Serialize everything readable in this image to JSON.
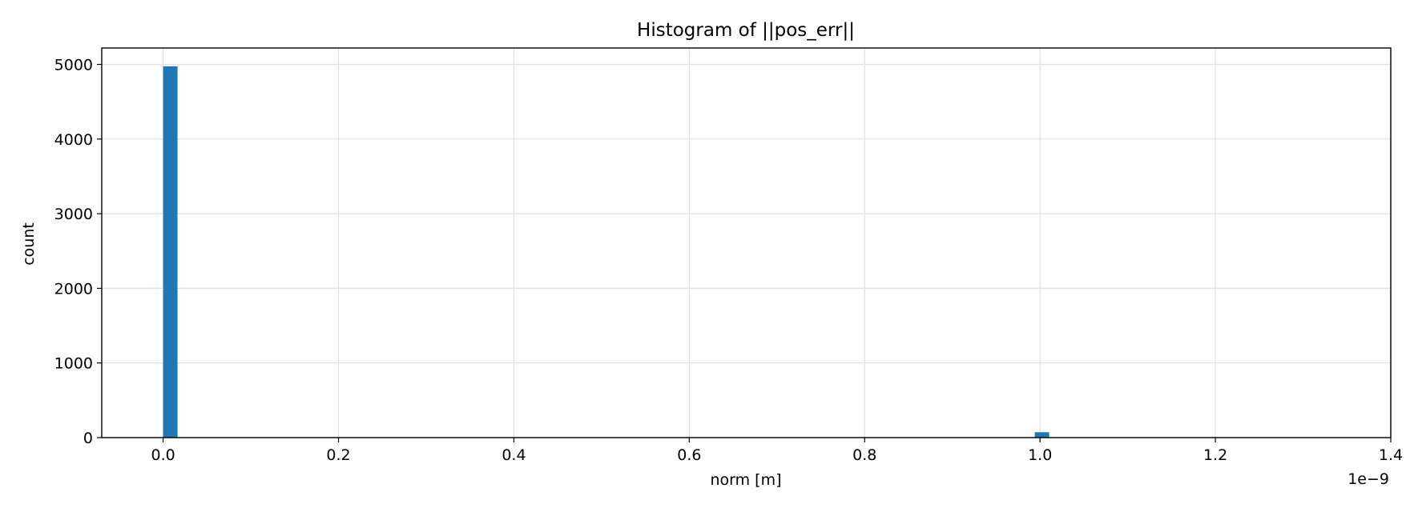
{
  "chart_data": {
    "type": "bar",
    "title": "Histogram of ||pos_err||",
    "xlabel": "norm [m]",
    "ylabel": "count",
    "x_offset_label": "1e−9",
    "xlim": [
      -0.07,
      1.4
    ],
    "ylim": [
      0,
      5220
    ],
    "x_ticks": [
      0.0,
      0.2,
      0.4,
      0.6,
      0.8,
      1.0,
      1.2,
      1.4
    ],
    "x_tick_labels": [
      "0.0",
      "0.2",
      "0.4",
      "0.6",
      "0.8",
      "1.0",
      "1.2",
      "1.4"
    ],
    "y_ticks": [
      0,
      1000,
      2000,
      3000,
      4000,
      5000
    ],
    "y_tick_labels": [
      "0",
      "1000",
      "2000",
      "3000",
      "4000",
      "5000"
    ],
    "grid": true,
    "bin_width": 0.0164,
    "bars": [
      {
        "x": 0.0,
        "value": 4975
      },
      {
        "x": 0.994,
        "value": 72
      }
    ],
    "colors": {
      "bar": "#1f77b4",
      "grid": "#e0e0e0",
      "axis": "#000000"
    }
  }
}
